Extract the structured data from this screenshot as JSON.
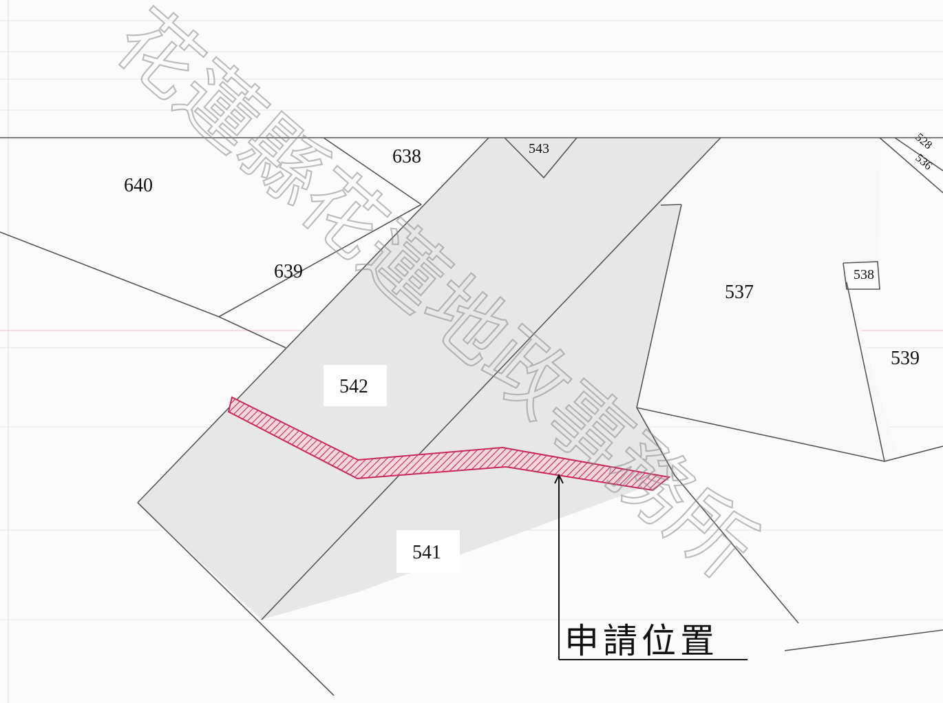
{
  "map": {
    "parcels": [
      {
        "id": "640",
        "label": "640"
      },
      {
        "id": "638",
        "label": "638"
      },
      {
        "id": "543",
        "label": "543"
      },
      {
        "id": "528",
        "label": "528"
      },
      {
        "id": "536",
        "label": "536"
      },
      {
        "id": "639",
        "label": "639"
      },
      {
        "id": "537",
        "label": "537"
      },
      {
        "id": "538",
        "label": "538"
      },
      {
        "id": "539",
        "label": "539"
      },
      {
        "id": "542",
        "label": "542"
      },
      {
        "id": "541",
        "label": "541"
      }
    ],
    "application_strip": {
      "color": "#c8285a"
    },
    "callout": {
      "label": "申請位置"
    },
    "watermark": {
      "line1": "花蓮縣花蓮地政事務所"
    },
    "colors": {
      "highlight": "#c8285a",
      "shaded_area": "#e8e8e8",
      "line": "#555555"
    }
  }
}
